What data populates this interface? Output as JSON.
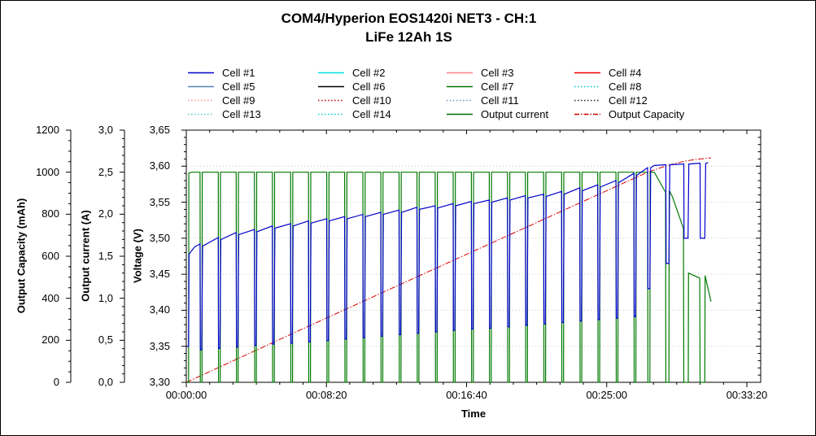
{
  "title": {
    "line1": "COM4/Hyperion EOS1420i NET3 - CH:1",
    "line2": "LiFe 12Ah 1S"
  },
  "chart_data": {
    "type": "line",
    "title": "COM4/Hyperion EOS1420i NET3 - CH:1 / LiFe 12Ah 1S",
    "grid": {
      "horizontal_major": true,
      "vertical": false,
      "color": "#c9c9c9",
      "style": "dotted"
    },
    "legend_position": "top",
    "time_axis": {
      "label": "Time",
      "range_s": [
        0,
        2000
      ],
      "major_ticks": [
        {
          "s": 0,
          "label": "00:00:00"
        },
        {
          "s": 500,
          "label": "00:08:20"
        },
        {
          "s": 1000,
          "label": "00:16:40"
        },
        {
          "s": 1500,
          "label": "00:25:00"
        },
        {
          "s": 2000,
          "label": "00:33:20"
        }
      ],
      "minor_step_s": 83.3333
    },
    "value_axes": {
      "capacity": {
        "label": "Output Capacity (mAh)",
        "range": [
          0,
          1200
        ],
        "major_step": 200,
        "minor_step": 50,
        "tick_labels": [
          "0",
          "200",
          "400",
          "600",
          "800",
          "1000",
          "1200"
        ]
      },
      "current": {
        "label": "Output current (A)",
        "range": [
          0,
          3
        ],
        "major_step": 0.5,
        "minor_step": 0.1,
        "tick_labels": [
          "0,0",
          "0,5",
          "1,0",
          "1,5",
          "2,0",
          "2,5",
          "3,0"
        ]
      },
      "voltage": {
        "label": "Voltage (V)",
        "range": [
          3.3,
          3.65
        ],
        "major_step": 0.05,
        "minor_step": 0.01,
        "tick_labels": [
          "3,30",
          "3,35",
          "3,40",
          "3,45",
          "3,50",
          "3,55",
          "3,60",
          "3,65"
        ]
      }
    },
    "legend": [
      {
        "label": "Cell #1",
        "color": "#0000cc",
        "style": "solid"
      },
      {
        "label": "Cell #2",
        "color": "#00e0e0",
        "style": "solid"
      },
      {
        "label": "Cell #3",
        "color": "#ff8080",
        "style": "solid"
      },
      {
        "label": "Cell #4",
        "color": "#ee0000",
        "style": "solid"
      },
      {
        "label": "Cell #5",
        "color": "#5585b5",
        "style": "solid"
      },
      {
        "label": "Cell #6",
        "color": "#000000",
        "style": "solid"
      },
      {
        "label": "Cell #7",
        "color": "#007700",
        "style": "solid"
      },
      {
        "label": "Cell #8",
        "color": "#00cccc",
        "style": "dotted"
      },
      {
        "label": "Cell #9",
        "color": "#ff9090",
        "style": "dotted"
      },
      {
        "label": "Cell #10",
        "color": "#bb0000",
        "style": "dotted"
      },
      {
        "label": "Cell #11",
        "color": "#7090c0",
        "style": "dotted"
      },
      {
        "label": "Cell #12",
        "color": "#222222",
        "style": "dotted"
      },
      {
        "label": "Cell #13",
        "color": "#60c8c8",
        "style": "dotted"
      },
      {
        "label": "Cell #14",
        "color": "#00cccc",
        "style": "dotted"
      },
      {
        "label": "Output current",
        "color": "#006e00",
        "style": "solid"
      },
      {
        "label": "Output Capacity",
        "color": "#cc0000",
        "style": "dashdot"
      }
    ],
    "series": [
      {
        "name": "Output Capacity",
        "axis": "capacity",
        "color": "#dd0000",
        "width": 1,
        "dash": "7 2 1.5 2",
        "points": [
          [
            0,
            0
          ],
          [
            400,
            245
          ],
          [
            800,
            488
          ],
          [
            1200,
            730
          ],
          [
            1500,
            912
          ],
          [
            1646,
            1000
          ],
          [
            1712,
            1030
          ],
          [
            1776,
            1052
          ],
          [
            1820,
            1061
          ],
          [
            1872,
            1068
          ]
        ]
      },
      {
        "name": "Output current",
        "axis": "current",
        "color": "#007a00",
        "width": 1.2,
        "dash": null,
        "points": [
          [
            0,
            0
          ],
          [
            8,
            0
          ],
          [
            9,
            2.49
          ],
          [
            20,
            2.5
          ],
          [
            49,
            2.5
          ],
          [
            50,
            0
          ],
          [
            56,
            0
          ],
          [
            57,
            2.5
          ],
          [
            114,
            2.5
          ],
          [
            115,
            0
          ],
          [
            121,
            0
          ],
          [
            122,
            2.5
          ],
          [
            178,
            2.5
          ],
          [
            179,
            0
          ],
          [
            185,
            0
          ],
          [
            186,
            2.5
          ],
          [
            243,
            2.5
          ],
          [
            244,
            0
          ],
          [
            250,
            0
          ],
          [
            251,
            2.5
          ],
          [
            307,
            2.5
          ],
          [
            308,
            0
          ],
          [
            314,
            0
          ],
          [
            315,
            2.5
          ],
          [
            372,
            2.5
          ],
          [
            373,
            0
          ],
          [
            379,
            0
          ],
          [
            380,
            2.5
          ],
          [
            436,
            2.5
          ],
          [
            437,
            0
          ],
          [
            443,
            0
          ],
          [
            444,
            2.5
          ],
          [
            501,
            2.5
          ],
          [
            502,
            0
          ],
          [
            508,
            0
          ],
          [
            509,
            2.5
          ],
          [
            565,
            2.5
          ],
          [
            566,
            0
          ],
          [
            572,
            0
          ],
          [
            573,
            2.5
          ],
          [
            630,
            2.5
          ],
          [
            631,
            0
          ],
          [
            637,
            0
          ],
          [
            638,
            2.5
          ],
          [
            694,
            2.5
          ],
          [
            695,
            0
          ],
          [
            701,
            0
          ],
          [
            702,
            2.5
          ],
          [
            759,
            2.5
          ],
          [
            760,
            0
          ],
          [
            766,
            0
          ],
          [
            767,
            2.5
          ],
          [
            823,
            2.5
          ],
          [
            824,
            0
          ],
          [
            830,
            0
          ],
          [
            831,
            2.5
          ],
          [
            888,
            2.5
          ],
          [
            889,
            0
          ],
          [
            895,
            0
          ],
          [
            896,
            2.5
          ],
          [
            952,
            2.5
          ],
          [
            953,
            0
          ],
          [
            959,
            0
          ],
          [
            960,
            2.5
          ],
          [
            1017,
            2.5
          ],
          [
            1018,
            0
          ],
          [
            1024,
            0
          ],
          [
            1025,
            2.5
          ],
          [
            1081,
            2.5
          ],
          [
            1082,
            0
          ],
          [
            1088,
            0
          ],
          [
            1089,
            2.5
          ],
          [
            1146,
            2.5
          ],
          [
            1147,
            0
          ],
          [
            1153,
            0
          ],
          [
            1154,
            2.5
          ],
          [
            1210,
            2.5
          ],
          [
            1211,
            0
          ],
          [
            1217,
            0
          ],
          [
            1218,
            2.5
          ],
          [
            1275,
            2.5
          ],
          [
            1276,
            0
          ],
          [
            1282,
            0
          ],
          [
            1283,
            2.5
          ],
          [
            1339,
            2.5
          ],
          [
            1340,
            0
          ],
          [
            1346,
            0
          ],
          [
            1347,
            2.5
          ],
          [
            1404,
            2.5
          ],
          [
            1405,
            0
          ],
          [
            1411,
            0
          ],
          [
            1412,
            2.5
          ],
          [
            1468,
            2.5
          ],
          [
            1469,
            0
          ],
          [
            1475,
            0
          ],
          [
            1476,
            2.5
          ],
          [
            1533,
            2.5
          ],
          [
            1534,
            0
          ],
          [
            1540,
            0
          ],
          [
            1541,
            2.5
          ],
          [
            1597,
            2.5
          ],
          [
            1598,
            0
          ],
          [
            1604,
            0
          ],
          [
            1605,
            2.5
          ],
          [
            1646,
            2.5
          ],
          [
            1647,
            0
          ],
          [
            1654,
            0
          ],
          [
            1655,
            2.5
          ],
          [
            1670,
            2.5
          ],
          [
            1710,
            2.26
          ],
          [
            1711,
            0
          ],
          [
            1722,
            0
          ],
          [
            1723,
            2.28
          ],
          [
            1734,
            2.21
          ],
          [
            1774,
            1.83
          ],
          [
            1775,
            0
          ],
          [
            1791,
            0
          ],
          [
            1792,
            1.3
          ],
          [
            1832,
            1.24
          ],
          [
            1833,
            0
          ],
          [
            1850,
            0
          ],
          [
            1851,
            1.27
          ],
          [
            1872,
            0.96
          ]
        ]
      },
      {
        "name": "Cell #1",
        "axis": "voltage",
        "color": "#0000cc",
        "width": 1.2,
        "dash": null,
        "points": [
          [
            0,
            3.35
          ],
          [
            8,
            3.35
          ],
          [
            10,
            3.478
          ],
          [
            30,
            3.488
          ],
          [
            49,
            3.492
          ],
          [
            50,
            3.345
          ],
          [
            55,
            3.345
          ],
          [
            58,
            3.489
          ],
          [
            114,
            3.501
          ],
          [
            115,
            3.347
          ],
          [
            120,
            3.347
          ],
          [
            123,
            3.498
          ],
          [
            178,
            3.508
          ],
          [
            179,
            3.349
          ],
          [
            184,
            3.349
          ],
          [
            187,
            3.505
          ],
          [
            243,
            3.512
          ],
          [
            244,
            3.351
          ],
          [
            249,
            3.351
          ],
          [
            252,
            3.509
          ],
          [
            307,
            3.517
          ],
          [
            308,
            3.353
          ],
          [
            313,
            3.353
          ],
          [
            316,
            3.514
          ],
          [
            372,
            3.52
          ],
          [
            373,
            3.354
          ],
          [
            378,
            3.354
          ],
          [
            381,
            3.517
          ],
          [
            436,
            3.524
          ],
          [
            437,
            3.356
          ],
          [
            442,
            3.356
          ],
          [
            445,
            3.521
          ],
          [
            501,
            3.527
          ],
          [
            502,
            3.358
          ],
          [
            507,
            3.358
          ],
          [
            510,
            3.524
          ],
          [
            565,
            3.53
          ],
          [
            566,
            3.36
          ],
          [
            571,
            3.36
          ],
          [
            574,
            3.527
          ],
          [
            630,
            3.533
          ],
          [
            631,
            3.362
          ],
          [
            636,
            3.362
          ],
          [
            639,
            3.53
          ],
          [
            694,
            3.536
          ],
          [
            695,
            3.364
          ],
          [
            700,
            3.364
          ],
          [
            703,
            3.533
          ],
          [
            759,
            3.539
          ],
          [
            760,
            3.366
          ],
          [
            765,
            3.366
          ],
          [
            768,
            3.536
          ],
          [
            823,
            3.543
          ],
          [
            824,
            3.368
          ],
          [
            829,
            3.368
          ],
          [
            832,
            3.54
          ],
          [
            888,
            3.545
          ],
          [
            889,
            3.37
          ],
          [
            894,
            3.37
          ],
          [
            897,
            3.542
          ],
          [
            952,
            3.548
          ],
          [
            953,
            3.372
          ],
          [
            958,
            3.372
          ],
          [
            961,
            3.545
          ],
          [
            1017,
            3.551
          ],
          [
            1018,
            3.374
          ],
          [
            1023,
            3.374
          ],
          [
            1026,
            3.548
          ],
          [
            1081,
            3.553
          ],
          [
            1082,
            3.375
          ],
          [
            1087,
            3.375
          ],
          [
            1090,
            3.55
          ],
          [
            1146,
            3.556
          ],
          [
            1147,
            3.377
          ],
          [
            1152,
            3.377
          ],
          [
            1155,
            3.553
          ],
          [
            1210,
            3.559
          ],
          [
            1211,
            3.379
          ],
          [
            1216,
            3.379
          ],
          [
            1219,
            3.556
          ],
          [
            1275,
            3.561
          ],
          [
            1276,
            3.381
          ],
          [
            1281,
            3.381
          ],
          [
            1284,
            3.558
          ],
          [
            1339,
            3.565
          ],
          [
            1340,
            3.383
          ],
          [
            1345,
            3.383
          ],
          [
            1348,
            3.561
          ],
          [
            1404,
            3.57
          ],
          [
            1405,
            3.385
          ],
          [
            1410,
            3.385
          ],
          [
            1413,
            3.566
          ],
          [
            1468,
            3.574
          ],
          [
            1469,
            3.387
          ],
          [
            1474,
            3.387
          ],
          [
            1477,
            3.571
          ],
          [
            1533,
            3.58
          ],
          [
            1534,
            3.389
          ],
          [
            1539,
            3.389
          ],
          [
            1542,
            3.577
          ],
          [
            1597,
            3.59
          ],
          [
            1598,
            3.391
          ],
          [
            1603,
            3.391
          ],
          [
            1606,
            3.587
          ],
          [
            1646,
            3.598
          ],
          [
            1647,
            3.43
          ],
          [
            1654,
            3.43
          ],
          [
            1657,
            3.598
          ],
          [
            1670,
            3.601
          ],
          [
            1711,
            3.602
          ],
          [
            1712,
            3.465
          ],
          [
            1722,
            3.465
          ],
          [
            1725,
            3.602
          ],
          [
            1775,
            3.603
          ],
          [
            1776,
            3.5
          ],
          [
            1790,
            3.5
          ],
          [
            1793,
            3.603
          ],
          [
            1833,
            3.604
          ],
          [
            1834,
            3.5
          ],
          [
            1850,
            3.5
          ],
          [
            1853,
            3.604
          ],
          [
            1862,
            3.605
          ]
        ]
      }
    ]
  }
}
